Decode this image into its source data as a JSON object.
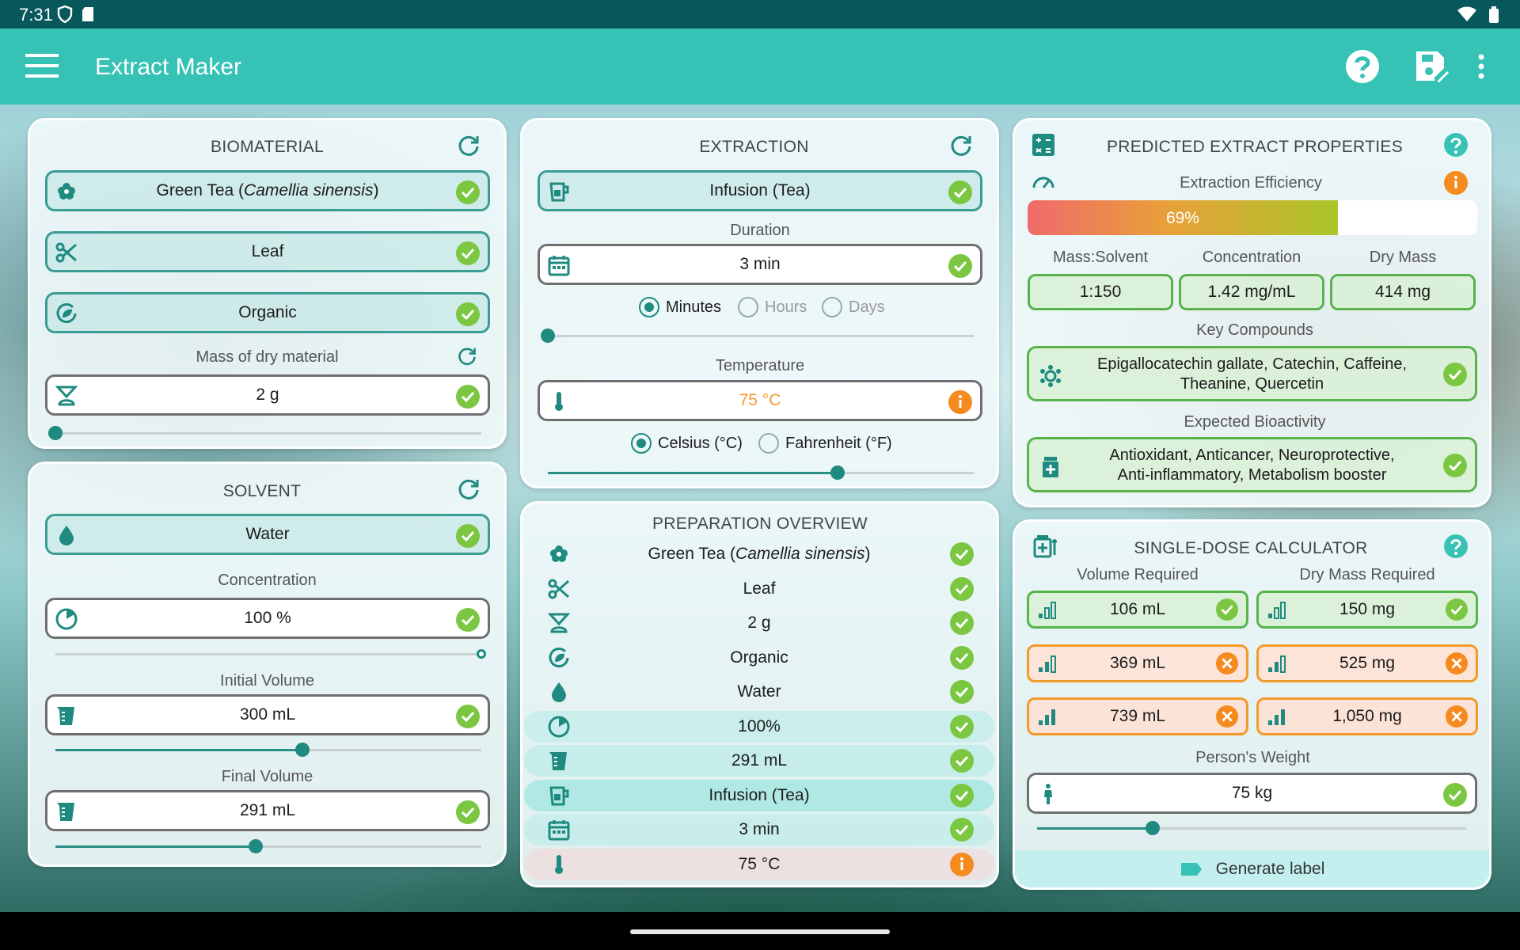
{
  "status_bar": {
    "time": "7:31"
  },
  "app_bar": {
    "title": "Extract Maker"
  },
  "colors": {
    "accent": "#36c2b4",
    "ok": "#7cc742",
    "warn": "#f39a2c",
    "teal_dark": "#1f8a80"
  },
  "biomaterial": {
    "title": "BIOMATERIAL",
    "species_common": "Green Tea (",
    "species_latin": "Camellia sinensis",
    "species_close": ")",
    "part": "Leaf",
    "cultivation": "Organic",
    "mass_label": "Mass of dry material",
    "mass_value": "2 g",
    "mass_slider_fraction": 0.0
  },
  "solvent": {
    "title": "SOLVENT",
    "name": "Water",
    "concentration_label": "Concentration",
    "concentration_value": "100 %",
    "concentration_slider_fraction": 1.0,
    "initial_volume_label": "Initial Volume",
    "initial_volume_value": "300 mL",
    "initial_volume_slider_fraction": 0.58,
    "final_volume_label": "Final Volume",
    "final_volume_value": "291 mL",
    "final_volume_slider_fraction": 0.47
  },
  "extraction": {
    "title": "EXTRACTION",
    "method": "Infusion (Tea)",
    "duration_label": "Duration",
    "duration_value": "3 min",
    "duration_units": [
      "Minutes",
      "Hours",
      "Days"
    ],
    "duration_selected": "Minutes",
    "duration_slider_fraction": 0.0,
    "temperature_label": "Temperature",
    "temperature_value": "75 °C",
    "temperature_units": [
      "Celsius (°C)",
      "Fahrenheit (°F)"
    ],
    "temperature_selected": "Celsius (°C)",
    "temperature_slider_fraction": 0.68
  },
  "overview": {
    "title": "PREPARATION OVERVIEW",
    "species_common": "Green Tea (",
    "species_latin": "Camellia sinensis",
    "species_close": ")",
    "rows": [
      "Leaf",
      "2 g",
      "Organic",
      "Water",
      "100%",
      "291 mL",
      "Infusion (Tea)",
      "3 min",
      "75 °C"
    ]
  },
  "predicted": {
    "title": "PREDICTED EXTRACT PROPERTIES",
    "efficiency_label": "Extraction Efficiency",
    "efficiency_value": "69%",
    "efficiency_fraction": 0.69,
    "col_labels": [
      "Mass:Solvent",
      "Concentration",
      "Dry Mass"
    ],
    "col_values": [
      "1:150",
      "1.42 mg/mL",
      "414 mg"
    ],
    "compounds_label": "Key Compounds",
    "compounds_line1": "Epigallocatechin gallate, Catechin, Caffeine,",
    "compounds_line2": "Theanine, Quercetin",
    "bioactivity_label": "Expected Bioactivity",
    "bioactivity_line1": "Antioxidant, Anticancer, Neuroprotective,",
    "bioactivity_line2": "Anti-inflammatory, Metabolism booster"
  },
  "calculator": {
    "title": "SINGLE-DOSE CALCULATOR",
    "volume_label": "Volume Required",
    "drymass_label": "Dry Mass Required",
    "volumes": [
      "106 mL",
      "369 mL",
      "739 mL"
    ],
    "drymasses": [
      "150 mg",
      "525 mg",
      "1,050 mg"
    ],
    "weight_label": "Person's Weight",
    "weight_value": "75 kg",
    "weight_slider_fraction": 0.27,
    "generate_label": "Generate label"
  }
}
